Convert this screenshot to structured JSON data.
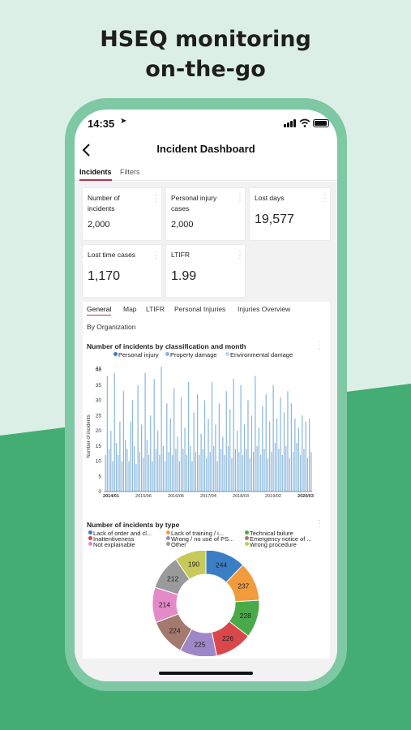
{
  "headline": {
    "line1": "HSEQ monitoring",
    "line2": "on-the-go"
  },
  "status_bar": {
    "time": "14:35"
  },
  "nav": {
    "title": "Incident Dashboard"
  },
  "tabs": [
    "Incidents",
    "Filters"
  ],
  "kpis": [
    {
      "label": "Number of incidents",
      "value": "2,000"
    },
    {
      "label": "Personal injury cases",
      "value": "2,000"
    },
    {
      "label": "Lost days",
      "value": "19,577"
    },
    {
      "label": "Lost time cases",
      "value": "1,170"
    },
    {
      "label": "LTIFR",
      "value": "1.99"
    }
  ],
  "subtabs": [
    "General",
    "Map",
    "LTIFR",
    "Personal Injuries",
    "Injuries Overview",
    "By Organization"
  ],
  "colors": {
    "accent": "#b5354f",
    "bar": "#8ab7de",
    "phone": "#7ec8a3",
    "green_bg": "#43ad74"
  },
  "chart_data": [
    {
      "type": "bar",
      "title": "Number of incidents by classification and month",
      "ylabel": "Number of incidents",
      "ylim": [
        0,
        40
      ],
      "yticks": [
        "0",
        "5",
        "10",
        "15",
        "20",
        "25",
        "30",
        "35",
        "40"
      ],
      "top_tick": "41",
      "x_tick_labels": [
        "2014/01",
        "2015/06",
        "2016/05",
        "2017/04",
        "2018/03",
        "2019/02",
        "2020/03"
      ],
      "series_names": [
        "Personal injury",
        "Property damage",
        "Environmental damage"
      ],
      "values": [
        12,
        38,
        14,
        20,
        10,
        39,
        16,
        12,
        23,
        10,
        33,
        17,
        14,
        10,
        23,
        30,
        15,
        9,
        35,
        13,
        22,
        11,
        39,
        17,
        12,
        25,
        10,
        37,
        14,
        20,
        12,
        41,
        15,
        10,
        29,
        13,
        24,
        12,
        34,
        14,
        18,
        10,
        31,
        14,
        21,
        12,
        36,
        15,
        10,
        26,
        13,
        32,
        12,
        19,
        14,
        30,
        11,
        24,
        13,
        36,
        15,
        22,
        10,
        29,
        14,
        18,
        12,
        33,
        15,
        27,
        11,
        37,
        14,
        20,
        13,
        35,
        12,
        22,
        14,
        30,
        11,
        25,
        13,
        38,
        15,
        21,
        12,
        28,
        14,
        32,
        11,
        23,
        13,
        35,
        16,
        24,
        14,
        31,
        12,
        26,
        15,
        33,
        11,
        29,
        13,
        24,
        16,
        21,
        12,
        25,
        14,
        23,
        11,
        24,
        13
      ]
    },
    {
      "type": "pie",
      "title": "Number of incidents by type",
      "legend": [
        {
          "label": "Lack of order and cl...",
          "color": "#3a7fc4"
        },
        {
          "label": "Lack of training / i...",
          "color": "#f29b3d"
        },
        {
          "label": "Technical failure",
          "color": "#4aaa4a"
        },
        {
          "label": "Inattentiveness",
          "color": "#d9474b"
        },
        {
          "label": "Wrong / no use of PS...",
          "color": "#9e86c9"
        },
        {
          "label": "Emergency notice of ...",
          "color": "#a57a6e"
        },
        {
          "label": "Not explainable",
          "color": "#e58ac8"
        },
        {
          "label": "Other",
          "color": "#9a9a9a"
        },
        {
          "label": "Wrong procedure",
          "color": "#c7c95a"
        }
      ],
      "slices": [
        {
          "value": 244,
          "label": "244",
          "color": "#3a7fc4"
        },
        {
          "value": 237,
          "label": "237",
          "color": "#f29b3d"
        },
        {
          "value": 228,
          "label": "228",
          "color": "#4aaa4a"
        },
        {
          "value": 226,
          "label": "226",
          "color": "#d9474b"
        },
        {
          "value": 225,
          "label": "225",
          "color": "#9e86c9"
        },
        {
          "value": 224,
          "label": "224",
          "color": "#a57a6e"
        },
        {
          "value": 214,
          "label": "214",
          "color": "#e58ac8"
        },
        {
          "value": 212,
          "label": "212",
          "color": "#9a9a9a"
        },
        {
          "value": 190,
          "label": "190",
          "color": "#c7c95a"
        }
      ]
    }
  ]
}
